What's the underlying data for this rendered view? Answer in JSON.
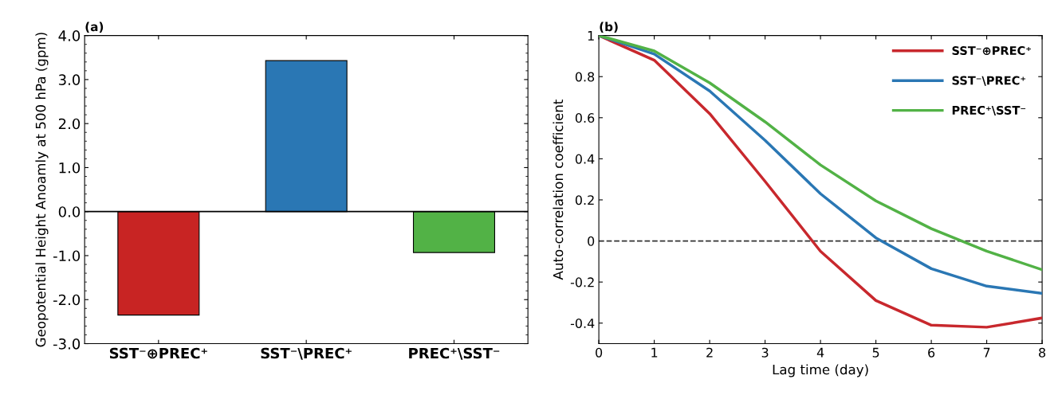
{
  "chart_data": [
    {
      "type": "bar",
      "title": "(a)",
      "ylabel": "Geopotential Height Anoamly at 500 hPa (gpm)",
      "categories": [
        "SST⁻⊕PREC⁺",
        "SST⁻\\PREC⁺",
        "PREC⁺\\SST⁻"
      ],
      "values": [
        -2.35,
        3.43,
        -0.93
      ],
      "colors": [
        "#c82423",
        "#2a77b4",
        "#52b246"
      ],
      "ylim": [
        -3,
        4
      ],
      "yticks": [
        {
          "value": -3,
          "label": "-3.0"
        },
        {
          "value": -2,
          "label": "-2.0"
        },
        {
          "value": -1,
          "label": "-1.0"
        },
        {
          "value": 0,
          "label": "0.0"
        },
        {
          "value": 1,
          "label": "1.0"
        },
        {
          "value": 2,
          "label": "2.0"
        },
        {
          "value": 3,
          "label": "3.0"
        },
        {
          "value": 4,
          "label": "4.0"
        }
      ],
      "ref_lines": [
        {
          "axis": "y",
          "value": 0,
          "color": "#000000",
          "line_style": "solid"
        }
      ],
      "grid": false
    },
    {
      "type": "line",
      "title": "(b)",
      "xlabel": "Lag time (day)",
      "ylabel": "Auto-correlation coefficient",
      "x": [
        0,
        1,
        2,
        3,
        4,
        5,
        6,
        7,
        8
      ],
      "series": [
        {
          "name": "SST⁻⊕PREC⁺",
          "color": "#c8282d",
          "values": [
            1,
            0.88,
            0.62,
            0.29,
            -0.05,
            -0.29,
            -0.41,
            -0.42,
            -0.375
          ]
        },
        {
          "name": "SST⁻\\PREC⁺",
          "color": "#2a77b4",
          "values": [
            1,
            0.91,
            0.73,
            0.49,
            0.23,
            0.015,
            -0.135,
            -0.22,
            -0.255
          ]
        },
        {
          "name": "PREC⁺\\SST⁻",
          "color": "#52b246",
          "values": [
            1,
            0.925,
            0.77,
            0.58,
            0.37,
            0.195,
            0.06,
            -0.05,
            -0.14
          ]
        }
      ],
      "xlim": [
        0,
        8
      ],
      "xticks": [
        0,
        1,
        2,
        3,
        4,
        5,
        6,
        7,
        8
      ],
      "ylim": [
        -0.5,
        1
      ],
      "yticks": [
        -0.4,
        -0.2,
        0,
        0.2,
        0.4,
        0.6,
        0.8,
        1
      ],
      "ref_lines": [
        {
          "axis": "y",
          "value": 0,
          "color": "#333333",
          "line_style": "dashed"
        }
      ],
      "grid": false,
      "legend": "top right",
      "marker": "none",
      "line_style": "solid"
    }
  ]
}
